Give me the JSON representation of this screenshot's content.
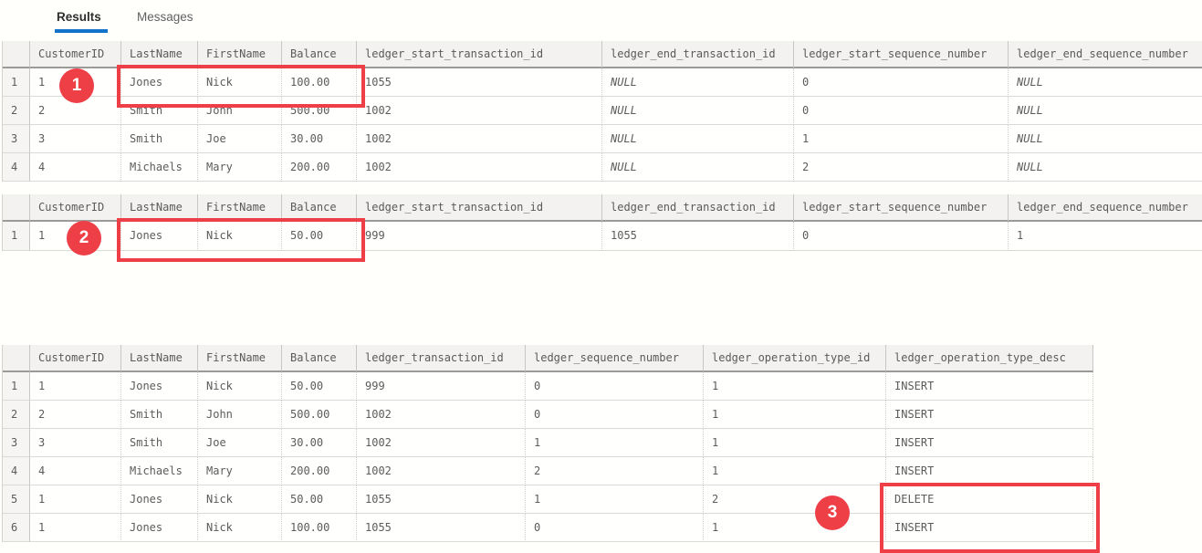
{
  "tabs": [
    {
      "label": "Results",
      "active": true
    },
    {
      "label": "Messages",
      "active": false
    }
  ],
  "colors": {
    "accent_blue": "#1273c8",
    "annotation_red": "#ee3f47",
    "header_gray": "#f3f2f1"
  },
  "grids": [
    {
      "name": "result-set-1",
      "columns": [
        "",
        "CustomerID",
        "LastName",
        "FirstName",
        "Balance",
        "ledger_start_transaction_id",
        "ledger_end_transaction_id",
        "ledger_start_sequence_number",
        "ledger_end_sequence_number"
      ],
      "rows": [
        [
          "1",
          "1",
          "Jones",
          "Nick",
          "100.00",
          "1055",
          "NULL",
          "0",
          "NULL"
        ],
        [
          "2",
          "2",
          "Smith",
          "John",
          "500.00",
          "1002",
          "NULL",
          "0",
          "NULL"
        ],
        [
          "3",
          "3",
          "Smith",
          "Joe",
          "30.00",
          "1002",
          "NULL",
          "1",
          "NULL"
        ],
        [
          "4",
          "4",
          "Michaels",
          "Mary",
          "200.00",
          "1002",
          "NULL",
          "2",
          "NULL"
        ]
      ]
    },
    {
      "name": "result-set-2",
      "columns": [
        "",
        "CustomerID",
        "LastName",
        "FirstName",
        "Balance",
        "ledger_start_transaction_id",
        "ledger_end_transaction_id",
        "ledger_start_sequence_number",
        "ledger_end_sequence_number"
      ],
      "rows": [
        [
          "1",
          "1",
          "Jones",
          "Nick",
          "50.00",
          "999",
          "1055",
          "0",
          "1"
        ]
      ]
    },
    {
      "name": "result-set-3",
      "columns": [
        "",
        "CustomerID",
        "LastName",
        "FirstName",
        "Balance",
        "ledger_transaction_id",
        "ledger_sequence_number",
        "ledger_operation_type_id",
        "ledger_operation_type_desc"
      ],
      "rows": [
        [
          "1",
          "1",
          "Jones",
          "Nick",
          "50.00",
          "999",
          "0",
          "1",
          "INSERT"
        ],
        [
          "2",
          "2",
          "Smith",
          "John",
          "500.00",
          "1002",
          "0",
          "1",
          "INSERT"
        ],
        [
          "3",
          "3",
          "Smith",
          "Joe",
          "30.00",
          "1002",
          "1",
          "1",
          "INSERT"
        ],
        [
          "4",
          "4",
          "Michaels",
          "Mary",
          "200.00",
          "1002",
          "2",
          "1",
          "INSERT"
        ],
        [
          "5",
          "1",
          "Jones",
          "Nick",
          "50.00",
          "1055",
          "1",
          "2",
          "DELETE"
        ],
        [
          "6",
          "1",
          "Jones",
          "Nick",
          "100.00",
          "1055",
          "0",
          "1",
          "INSERT"
        ]
      ]
    }
  ],
  "annotations": {
    "badges": [
      "1",
      "2",
      "3"
    ]
  }
}
